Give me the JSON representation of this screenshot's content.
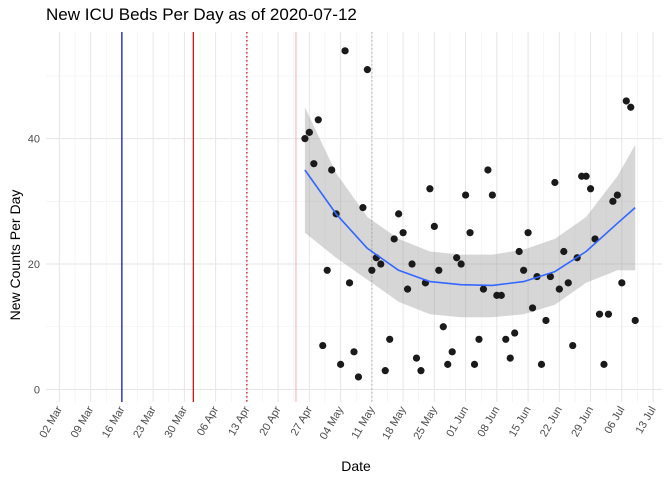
{
  "chart_data": {
    "type": "scatter",
    "title": "New ICU Beds Per Day as of 2020-07-12",
    "xlabel": "Date",
    "ylabel": "New Counts Per Day",
    "x_ticks": [
      "02 Mar",
      "09 Mar",
      "16 Mar",
      "23 Mar",
      "30 Mar",
      "06 Apr",
      "13 Apr",
      "20 Apr",
      "27 Apr",
      "04 May",
      "11 May",
      "18 May",
      "25 May",
      "01 Jun",
      "08 Jun",
      "15 Jun",
      "22 Jun",
      "29 Jun",
      "06 Jul",
      "13 Jul"
    ],
    "y_ticks": [
      0,
      20,
      40
    ],
    "xlim": [
      "2020-02-28",
      "2020-07-15"
    ],
    "ylim": [
      -2,
      57
    ],
    "grid": true,
    "vlines": [
      {
        "date": "2020-03-16",
        "color": "#0000cc",
        "style": "solid"
      },
      {
        "date": "2020-04-01",
        "color": "#cc0000",
        "style": "solid"
      },
      {
        "date": "2020-04-13",
        "color": "#cc0000",
        "style": "dotted"
      },
      {
        "date": "2020-04-24",
        "color": "#ffb6c1",
        "style": "solid"
      },
      {
        "date": "2020-05-11",
        "color": "#bbbbbb",
        "style": "dotted"
      }
    ],
    "points": [
      {
        "x": "2020-04-26",
        "y": 40
      },
      {
        "x": "2020-04-27",
        "y": 41
      },
      {
        "x": "2020-04-28",
        "y": 36
      },
      {
        "x": "2020-04-29",
        "y": 43
      },
      {
        "x": "2020-04-30",
        "y": 7
      },
      {
        "x": "2020-05-01",
        "y": 19
      },
      {
        "x": "2020-05-02",
        "y": 35
      },
      {
        "x": "2020-05-03",
        "y": 28
      },
      {
        "x": "2020-05-04",
        "y": 4
      },
      {
        "x": "2020-05-05",
        "y": 54
      },
      {
        "x": "2020-05-06",
        "y": 17
      },
      {
        "x": "2020-05-07",
        "y": 6
      },
      {
        "x": "2020-05-08",
        "y": 2
      },
      {
        "x": "2020-05-09",
        "y": 29
      },
      {
        "x": "2020-05-10",
        "y": 51
      },
      {
        "x": "2020-05-11",
        "y": 19
      },
      {
        "x": "2020-05-12",
        "y": 21
      },
      {
        "x": "2020-05-13",
        "y": 20
      },
      {
        "x": "2020-05-14",
        "y": 3
      },
      {
        "x": "2020-05-15",
        "y": 8
      },
      {
        "x": "2020-05-16",
        "y": 24
      },
      {
        "x": "2020-05-17",
        "y": 28
      },
      {
        "x": "2020-05-18",
        "y": 25
      },
      {
        "x": "2020-05-19",
        "y": 16
      },
      {
        "x": "2020-05-20",
        "y": 20
      },
      {
        "x": "2020-05-21",
        "y": 5
      },
      {
        "x": "2020-05-22",
        "y": 3
      },
      {
        "x": "2020-05-23",
        "y": 17
      },
      {
        "x": "2020-05-24",
        "y": 32
      },
      {
        "x": "2020-05-25",
        "y": 26
      },
      {
        "x": "2020-05-26",
        "y": 19
      },
      {
        "x": "2020-05-27",
        "y": 10
      },
      {
        "x": "2020-05-28",
        "y": 4
      },
      {
        "x": "2020-05-29",
        "y": 6
      },
      {
        "x": "2020-05-30",
        "y": 21
      },
      {
        "x": "2020-05-31",
        "y": 20
      },
      {
        "x": "2020-06-01",
        "y": 31
      },
      {
        "x": "2020-06-02",
        "y": 25
      },
      {
        "x": "2020-06-03",
        "y": 4
      },
      {
        "x": "2020-06-04",
        "y": 8
      },
      {
        "x": "2020-06-05",
        "y": 16
      },
      {
        "x": "2020-06-06",
        "y": 35
      },
      {
        "x": "2020-06-07",
        "y": 31
      },
      {
        "x": "2020-06-08",
        "y": 15
      },
      {
        "x": "2020-06-09",
        "y": 15
      },
      {
        "x": "2020-06-10",
        "y": 8
      },
      {
        "x": "2020-06-11",
        "y": 5
      },
      {
        "x": "2020-06-12",
        "y": 9
      },
      {
        "x": "2020-06-13",
        "y": 22
      },
      {
        "x": "2020-06-14",
        "y": 19
      },
      {
        "x": "2020-06-15",
        "y": 25
      },
      {
        "x": "2020-06-16",
        "y": 13
      },
      {
        "x": "2020-06-17",
        "y": 18
      },
      {
        "x": "2020-06-18",
        "y": 4
      },
      {
        "x": "2020-06-19",
        "y": 11
      },
      {
        "x": "2020-06-20",
        "y": 18
      },
      {
        "x": "2020-06-21",
        "y": 33
      },
      {
        "x": "2020-06-22",
        "y": 16
      },
      {
        "x": "2020-06-23",
        "y": 22
      },
      {
        "x": "2020-06-24",
        "y": 17
      },
      {
        "x": "2020-06-25",
        "y": 7
      },
      {
        "x": "2020-06-26",
        "y": 21
      },
      {
        "x": "2020-06-27",
        "y": 34
      },
      {
        "x": "2020-06-28",
        "y": 34
      },
      {
        "x": "2020-06-29",
        "y": 32
      },
      {
        "x": "2020-06-30",
        "y": 24
      },
      {
        "x": "2020-07-01",
        "y": 12
      },
      {
        "x": "2020-07-02",
        "y": 4
      },
      {
        "x": "2020-07-03",
        "y": 12
      },
      {
        "x": "2020-07-04",
        "y": 30
      },
      {
        "x": "2020-07-05",
        "y": 31
      },
      {
        "x": "2020-07-06",
        "y": 17
      },
      {
        "x": "2020-07-07",
        "y": 46
      },
      {
        "x": "2020-07-08",
        "y": 45
      },
      {
        "x": "2020-07-09",
        "y": 11
      }
    ],
    "smooth": {
      "color": "#3366ff",
      "band_color": "#999999",
      "points": [
        {
          "x": "2020-04-26",
          "y": 35,
          "lo": 25,
          "hi": 45
        },
        {
          "x": "2020-05-03",
          "y": 28,
          "lo": 21,
          "hi": 34.5
        },
        {
          "x": "2020-05-10",
          "y": 22.5,
          "lo": 17.5,
          "hi": 27.5
        },
        {
          "x": "2020-05-17",
          "y": 19,
          "lo": 14,
          "hi": 24
        },
        {
          "x": "2020-05-24",
          "y": 17.2,
          "lo": 12,
          "hi": 22
        },
        {
          "x": "2020-05-31",
          "y": 16.7,
          "lo": 11.5,
          "hi": 21.5
        },
        {
          "x": "2020-06-07",
          "y": 16.6,
          "lo": 11.5,
          "hi": 21.5
        },
        {
          "x": "2020-06-14",
          "y": 17.2,
          "lo": 12,
          "hi": 22.3
        },
        {
          "x": "2020-06-21",
          "y": 18.8,
          "lo": 13.5,
          "hi": 24
        },
        {
          "x": "2020-06-28",
          "y": 22,
          "lo": 17,
          "hi": 27.5
        },
        {
          "x": "2020-07-05",
          "y": 26.5,
          "lo": 19,
          "hi": 34
        },
        {
          "x": "2020-07-09",
          "y": 29,
          "lo": 19,
          "hi": 39
        }
      ]
    }
  }
}
